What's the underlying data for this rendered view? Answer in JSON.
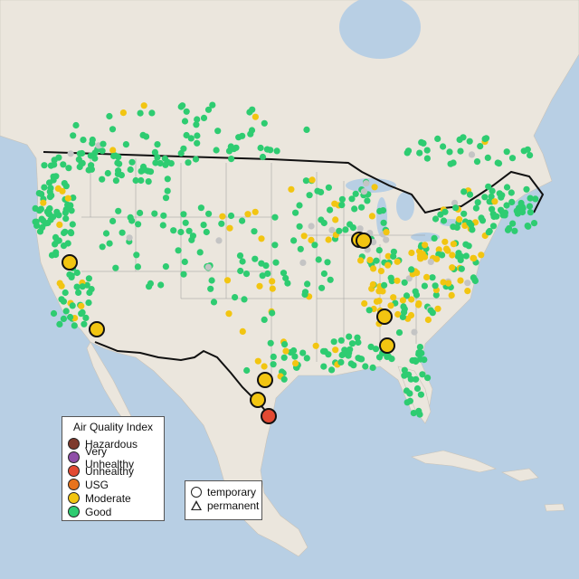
{
  "legend": {
    "title": "Air Quality Index",
    "categories": [
      {
        "label": "Hazardous",
        "color": "#7e3a2d"
      },
      {
        "label": "Very Unhealthy",
        "color": "#8f4fa8"
      },
      {
        "label": "Unhealthy",
        "color": "#e24a33"
      },
      {
        "label": "USG",
        "color": "#e8731c"
      },
      {
        "label": "Moderate",
        "color": "#f2c511"
      },
      {
        "label": "Good",
        "color": "#2ecc71"
      }
    ]
  },
  "type_legend": {
    "temporary": "temporary",
    "permanent": "permanent"
  },
  "colors": {
    "ocean": "#b8cfe4",
    "land": "#ebe6dd",
    "no_data": "#c4c4c4"
  },
  "large_monitors": [
    {
      "category": "Moderate",
      "shape": "circle"
    },
    {
      "category": "Moderate",
      "shape": "circle"
    },
    {
      "category": "Moderate",
      "shape": "circle"
    },
    {
      "category": "Moderate",
      "shape": "circle"
    },
    {
      "category": "Moderate",
      "shape": "circle"
    },
    {
      "category": "Moderate",
      "shape": "circle"
    },
    {
      "category": "Moderate",
      "shape": "circle"
    },
    {
      "category": "Moderate",
      "shape": "circle"
    },
    {
      "category": "Unhealthy",
      "shape": "circle"
    }
  ]
}
